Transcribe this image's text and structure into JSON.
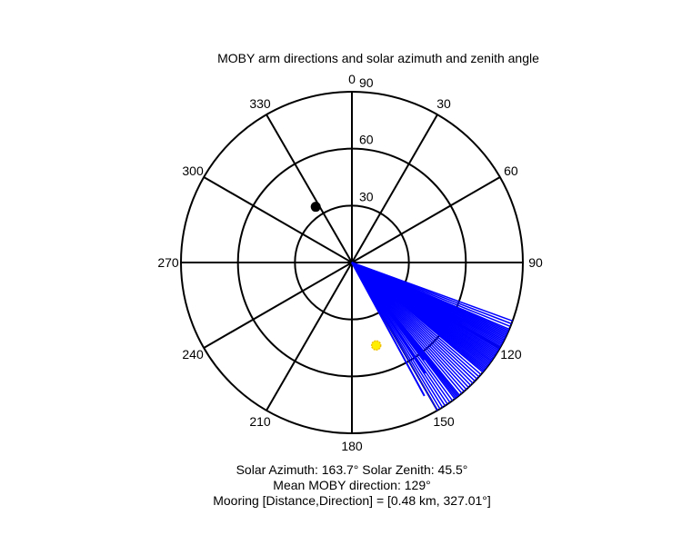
{
  "chart_data": {
    "type": "polar",
    "title": "MOBY arm directions and solar azimuth and zenith angle",
    "angle_ticks": [
      {
        "deg": 0,
        "label": "0"
      },
      {
        "deg": 30,
        "label": "30"
      },
      {
        "deg": 60,
        "label": "60"
      },
      {
        "deg": 90,
        "label": "90"
      },
      {
        "deg": 120,
        "label": "120"
      },
      {
        "deg": 150,
        "label": "150"
      },
      {
        "deg": 180,
        "label": "180"
      },
      {
        "deg": 210,
        "label": "210"
      },
      {
        "deg": 240,
        "label": "240"
      },
      {
        "deg": 270,
        "label": "270"
      },
      {
        "deg": 300,
        "label": "300"
      },
      {
        "deg": 330,
        "label": "330"
      }
    ],
    "radial_ticks": [
      {
        "value": 30,
        "label": "30"
      },
      {
        "value": 60,
        "label": "60"
      },
      {
        "value": 90,
        "label": "90"
      }
    ],
    "r_max": 90,
    "angle_zero": "top",
    "angle_direction": "clockwise",
    "arm_directions_deg": [
      110,
      111,
      112,
      113,
      113.5,
      114,
      114.5,
      115,
      115.5,
      116,
      116.5,
      117,
      117.5,
      118,
      118.5,
      119,
      119.5,
      120,
      120.5,
      121,
      121.5,
      122,
      122.5,
      123,
      123.5,
      124,
      124.5,
      125,
      125.5,
      126,
      126.5,
      127,
      127.5,
      128,
      128.5,
      129,
      129.5,
      130,
      131,
      132,
      133,
      134,
      135,
      136,
      137,
      138,
      139,
      140,
      141,
      141.5,
      142,
      142.5,
      143,
      144,
      145,
      146,
      147,
      148,
      149,
      150
    ],
    "extra_arms": [
      {
        "deg": 151.5,
        "r": 80
      },
      {
        "deg": 146.5,
        "r": 70
      },
      {
        "deg": 143.5,
        "r": 64
      }
    ],
    "arm_color": "#0000ff",
    "solar_point": {
      "azimuth": 163.7,
      "zenith": 45.5,
      "color": "#ffee00"
    },
    "mooring_point": {
      "direction": 327.01,
      "r": 35,
      "color": "#000000"
    },
    "captions": [
      "Solar Azimuth: 163.7°   Solar Zenith: 45.5°",
      "Mean MOBY direction: 129°",
      "Mooring [Distance,Direction] = [0.48 km, 327.01°]"
    ]
  }
}
